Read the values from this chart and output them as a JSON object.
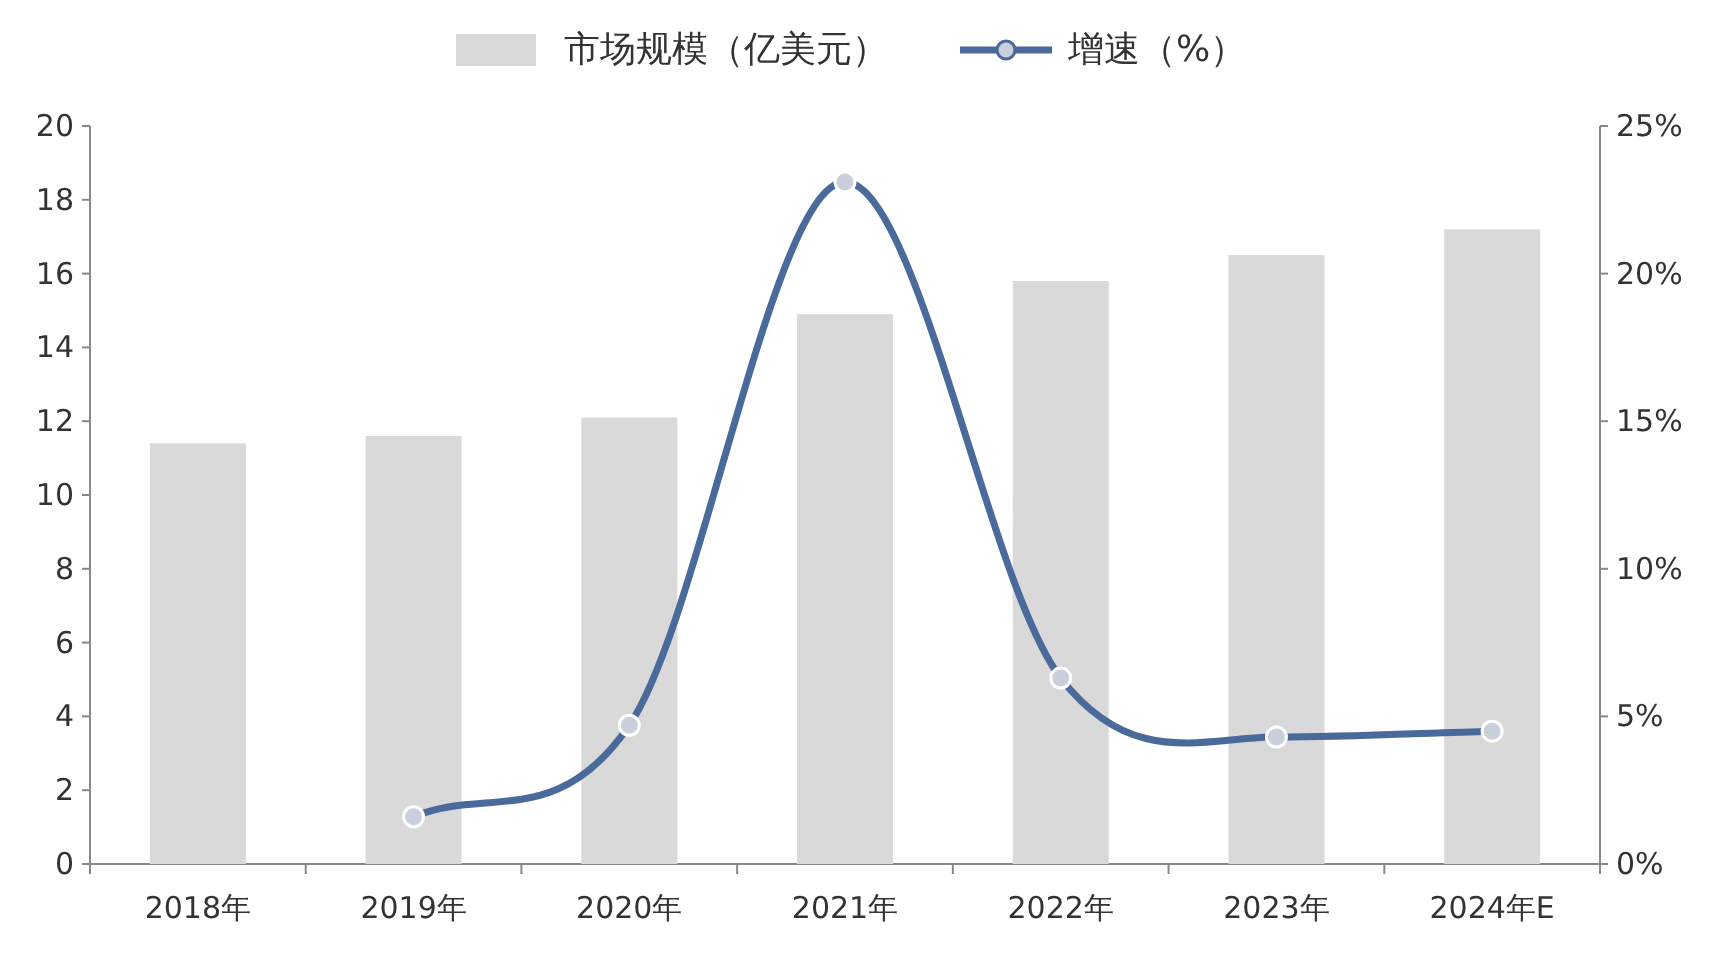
{
  "chart_data": {
    "type": "bar",
    "categories": [
      "2018年",
      "2019年",
      "2020年",
      "2021年",
      "2022年",
      "2023年",
      "2024年E"
    ],
    "series": [
      {
        "name": "市场规模（亿美元）",
        "color": "#d9d9d9",
        "values": [
          11.4,
          11.6,
          12.1,
          14.9,
          15.8,
          16.5,
          17.2
        ]
      },
      {
        "name": "增速（%）",
        "type": "line",
        "axis": "y2",
        "color": "#4a6a9c",
        "marker": "circle",
        "values": [
          null,
          1.6,
          4.7,
          23.1,
          6.3,
          4.3,
          4.5
        ]
      }
    ],
    "ylim": [
      0,
      20
    ],
    "yticks": [
      0,
      2,
      4,
      6,
      8,
      10,
      12,
      14,
      16,
      18,
      20
    ],
    "y2lim": [
      0,
      25
    ],
    "y2ticks": [
      {
        "value": 0,
        "label": "0%"
      },
      {
        "value": 5,
        "label": "5%"
      },
      {
        "value": 10,
        "label": "10%"
      },
      {
        "value": 15,
        "label": "15%"
      },
      {
        "value": 20,
        "label": "20%"
      },
      {
        "value": 25,
        "label": "25%"
      }
    ],
    "legend": "top",
    "grid": false
  }
}
